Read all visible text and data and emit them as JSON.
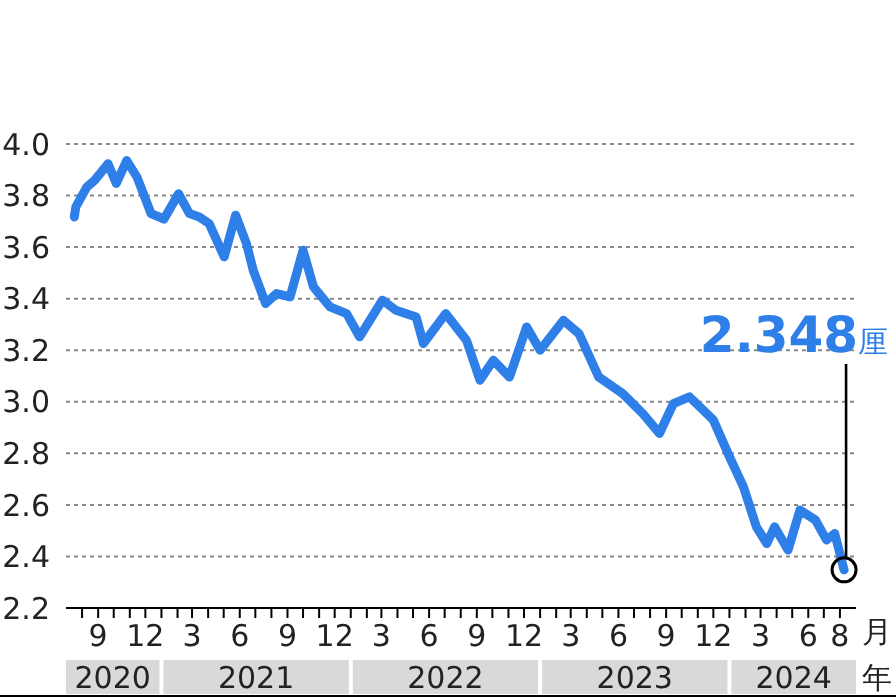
{
  "chart_data": {
    "type": "line",
    "xlabel": "月",
    "x": [
      "2020-07-17",
      "2020-07-20",
      "2020-08-10",
      "2020-08-25",
      "2020-09-20",
      "2020-10-06",
      "2020-10-26",
      "2020-11-15",
      "2020-12-12",
      "2021-01-06",
      "2021-02-03",
      "2021-02-24",
      "2021-03-15",
      "2021-04-03",
      "2021-05-02",
      "2021-05-24",
      "2021-06-14",
      "2021-06-27",
      "2021-07-21",
      "2021-08-11",
      "2021-09-06",
      "2021-10-01",
      "2021-10-21",
      "2021-11-22",
      "2021-12-24",
      "2022-01-18",
      "2022-03-03",
      "2022-03-29",
      "2022-05-07",
      "2022-05-21",
      "2022-07-03",
      "2022-08-12",
      "2022-09-07",
      "2022-10-03",
      "2022-11-03",
      "2022-12-06",
      "2023-01-01",
      "2023-02-15",
      "2023-03-17",
      "2023-04-24",
      "2023-06-09",
      "2023-07-18",
      "2023-08-19",
      "2023-09-15",
      "2023-10-16",
      "2023-12-01",
      "2024-01-01",
      "2024-01-28",
      "2024-02-22",
      "2024-03-13",
      "2024-03-28",
      "2024-04-23",
      "2024-05-16",
      "2024-06-15",
      "2024-07-06",
      "2024-07-22",
      "2024-08-09"
    ],
    "series": [
      {
        "color": "#2f7fe8",
        "values": [
          3.717,
          3.756,
          3.833,
          3.859,
          3.923,
          3.847,
          3.936,
          3.871,
          3.73,
          3.709,
          3.807,
          3.73,
          3.717,
          3.691,
          3.562,
          3.724,
          3.613,
          3.51,
          3.381,
          3.42,
          3.407,
          3.588,
          3.446,
          3.368,
          3.342,
          3.252,
          3.394,
          3.355,
          3.329,
          3.226,
          3.342,
          3.239,
          3.084,
          3.161,
          3.096,
          3.29,
          3.2,
          3.316,
          3.264,
          3.096,
          3.032,
          2.954,
          2.877,
          2.993,
          3.019,
          2.929,
          2.787,
          2.67,
          2.515,
          2.45,
          2.515,
          2.425,
          2.58,
          2.541,
          2.464,
          2.489,
          2.348
        ]
      }
    ],
    "ylim": [
      2.2,
      4.0
    ],
    "yticks": [
      2.2,
      2.4,
      2.6,
      2.8,
      {
        "value": 3,
        "label": "3.0"
      },
      3.2,
      3.4,
      3.6,
      3.8,
      {
        "value": 4,
        "label": "4.0"
      }
    ],
    "xlim": [
      "2020-07-01",
      "2024-09-01"
    ],
    "xticks": [
      {
        "value": "2020-08-01",
        "label": null
      },
      {
        "value": "2020-09-01",
        "label": "9"
      },
      {
        "value": "2020-10-01",
        "label": null
      },
      {
        "value": "2020-11-01",
        "label": null
      },
      {
        "value": "2020-12-01",
        "label": "12"
      },
      {
        "value": "2021-01-01",
        "label": null
      },
      {
        "value": "2021-02-01",
        "label": null
      },
      {
        "value": "2021-03-01",
        "label": "3"
      },
      {
        "value": "2021-04-01",
        "label": null
      },
      {
        "value": "2021-05-01",
        "label": null
      },
      {
        "value": "2021-06-01",
        "label": "6"
      },
      {
        "value": "2021-07-01",
        "label": null
      },
      {
        "value": "2021-08-01",
        "label": null
      },
      {
        "value": "2021-09-01",
        "label": "9"
      },
      {
        "value": "2021-10-01",
        "label": null
      },
      {
        "value": "2021-11-01",
        "label": null
      },
      {
        "value": "2021-12-01",
        "label": "12"
      },
      {
        "value": "2022-01-01",
        "label": null
      },
      {
        "value": "2022-02-01",
        "label": null
      },
      {
        "value": "2022-03-01",
        "label": "3"
      },
      {
        "value": "2022-04-01",
        "label": null
      },
      {
        "value": "2022-05-01",
        "label": null
      },
      {
        "value": "2022-06-01",
        "label": "6"
      },
      {
        "value": "2022-07-01",
        "label": null
      },
      {
        "value": "2022-08-01",
        "label": null
      },
      {
        "value": "2022-09-01",
        "label": "9"
      },
      {
        "value": "2022-10-01",
        "label": null
      },
      {
        "value": "2022-11-01",
        "label": null
      },
      {
        "value": "2022-12-01",
        "label": "12"
      },
      {
        "value": "2023-01-01",
        "label": null
      },
      {
        "value": "2023-02-01",
        "label": null
      },
      {
        "value": "2023-03-01",
        "label": "3"
      },
      {
        "value": "2023-04-01",
        "label": null
      },
      {
        "value": "2023-05-01",
        "label": null
      },
      {
        "value": "2023-06-01",
        "label": "6"
      },
      {
        "value": "2023-07-01",
        "label": null
      },
      {
        "value": "2023-08-01",
        "label": null
      },
      {
        "value": "2023-09-01",
        "label": "9"
      },
      {
        "value": "2023-10-01",
        "label": null
      },
      {
        "value": "2023-11-01",
        "label": null
      },
      {
        "value": "2023-12-01",
        "label": "12"
      },
      {
        "value": "2024-01-01",
        "label": null
      },
      {
        "value": "2024-02-01",
        "label": null
      },
      {
        "value": "2024-03-01",
        "label": "3"
      },
      {
        "value": "2024-04-01",
        "label": null
      },
      {
        "value": "2024-05-01",
        "label": null
      },
      {
        "value": "2024-06-01",
        "label": "6"
      },
      {
        "value": "2024-07-01",
        "label": null
      },
      {
        "value": "2024-08-01",
        "label": "8"
      }
    ],
    "grid": "y",
    "marker": "none",
    "line_style": "solid",
    "annotations": [
      {
        "text": "2.348厘",
        "x": "2024-08-09",
        "y": 2.348
      },
      "2020",
      "2021",
      "2022",
      "2023",
      "2024",
      "年"
    ]
  }
}
